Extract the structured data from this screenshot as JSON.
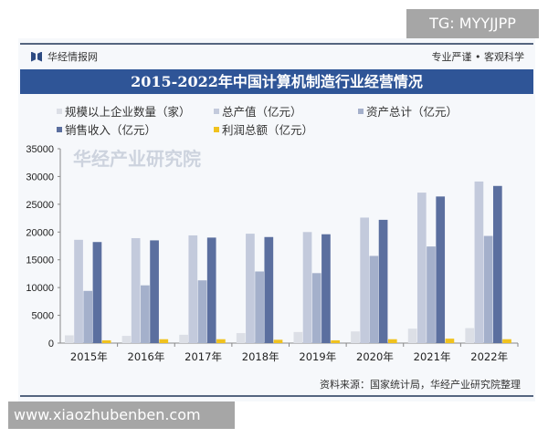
{
  "header": {
    "brand": "华经情报网",
    "slogan": "专业严谨 • 客观科学"
  },
  "overlay": {
    "tg": "TG: MYYJJPP",
    "url": "www.xiaozhubenben.com"
  },
  "footer": {
    "source": "资料来源：国家统计局，华经产业研究院整理",
    "watermark": "华经产业研究院"
  },
  "chart_data": {
    "type": "bar",
    "title": "2015-2022年中国计算机制造行业经营情况",
    "categories": [
      "2015年",
      "2016年",
      "2017年",
      "2018年",
      "2019年",
      "2020年",
      "2021年",
      "2022年"
    ],
    "ylim": [
      0,
      35000
    ],
    "yticks": [
      "0",
      "5000",
      "10000",
      "15000",
      "20000",
      "25000",
      "30000",
      "35000"
    ],
    "grid": false,
    "legend_position": "top",
    "series": [
      {
        "name": "规模以上企业数量（家）",
        "color": "#dcdfe6",
        "values": [
          1400,
          1300,
          1500,
          1800,
          2000,
          2100,
          2600,
          2700
        ]
      },
      {
        "name": "总产值（亿元）",
        "color": "#c3cadc",
        "values": [
          18600,
          18900,
          19400,
          19700,
          20000,
          22600,
          27100,
          29100
        ]
      },
      {
        "name": "资产总计（亿元）",
        "color": "#a4b0cb",
        "values": [
          9400,
          10400,
          11300,
          12900,
          12600,
          15700,
          17400,
          19300
        ]
      },
      {
        "name": "销售收入（亿元）",
        "color": "#5b6f9f",
        "values": [
          18200,
          18500,
          19000,
          19100,
          19600,
          22200,
          26400,
          28300
        ]
      },
      {
        "name": "利润总额（亿元）",
        "color": "#f0c21e",
        "values": [
          500,
          700,
          700,
          600,
          500,
          700,
          800,
          700
        ]
      }
    ]
  }
}
